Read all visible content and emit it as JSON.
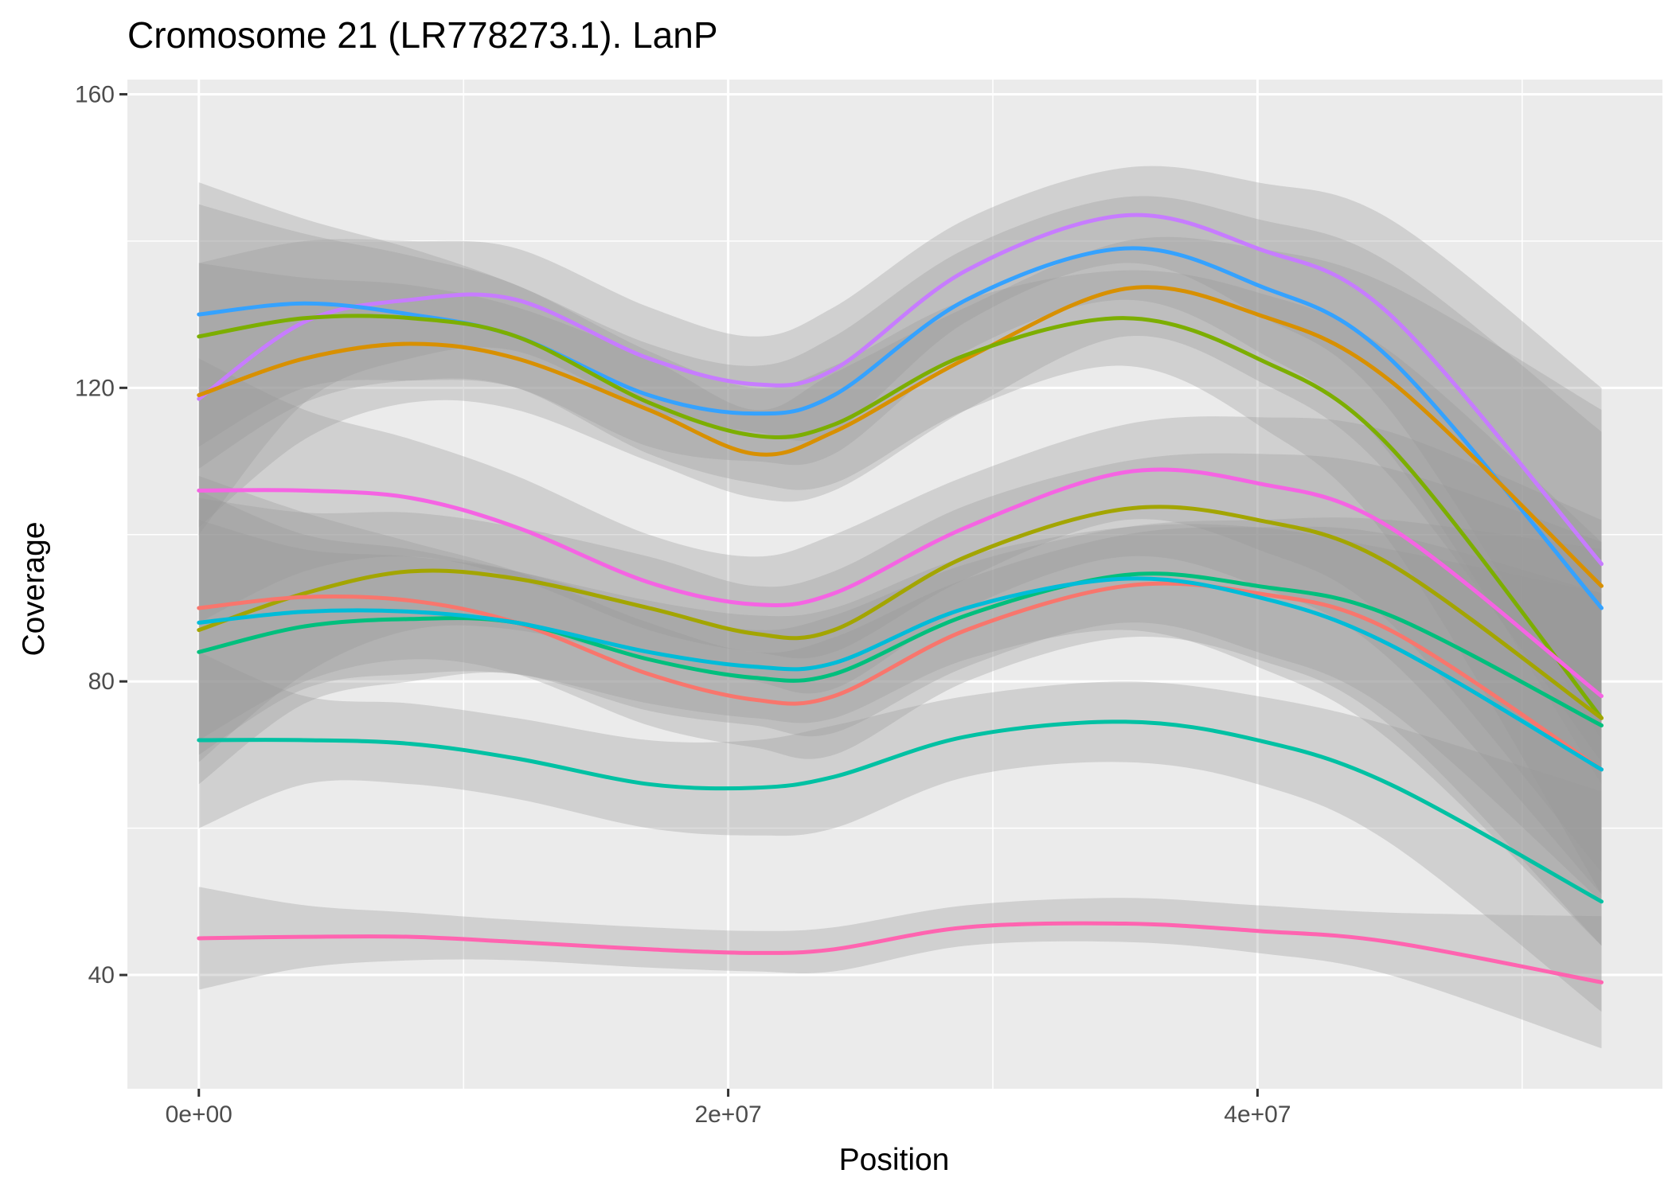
{
  "chart_data": {
    "type": "line",
    "title": "Cromosome 21 (LR778273.1). LanP",
    "xlabel": "Position",
    "ylabel": "Coverage",
    "xlim": [
      -2700000,
      55300000
    ],
    "ylim": [
      24.5,
      162
    ],
    "x_ticks": [
      {
        "value": 0,
        "label": "0e+00"
      },
      {
        "value": 20000000,
        "label": "2e+07"
      },
      {
        "value": 40000000,
        "label": "4e+07"
      }
    ],
    "x_minor": [
      10000000,
      30000000,
      50000000
    ],
    "y_ticks": [
      {
        "value": 40,
        "label": "40"
      },
      {
        "value": 80,
        "label": "80"
      },
      {
        "value": 120,
        "label": "120"
      },
      {
        "value": 160,
        "label": "160"
      }
    ],
    "y_minor": [
      60,
      100,
      140
    ],
    "grid": true,
    "legend": "none",
    "confidence_bands": true,
    "background": "#ebebeb",
    "band_color": "#999999",
    "x": [
      0,
      4000000,
      8000000,
      12000000,
      17000000,
      21000000,
      24000000,
      29000000,
      35000000,
      40000000,
      45000000,
      53000000
    ],
    "series": [
      {
        "color": "#c77cff",
        "values": [
          118.5,
          129,
          132,
          132,
          124,
          120.5,
          122.5,
          136,
          143.5,
          139,
          130,
          96
        ],
        "lower": [
          100,
          118,
          124,
          125,
          117,
          114,
          114,
          129,
          137,
          130,
          117,
          72
        ],
        "upper": [
          137,
          140,
          140,
          139,
          131,
          127,
          131,
          143,
          150,
          148,
          143,
          120
        ]
      },
      {
        "color": "#35a2ff",
        "values": [
          130,
          131.5,
          130,
          127,
          119,
          116.5,
          119,
          132,
          139,
          134,
          124,
          90
        ],
        "lower": [
          112,
          120,
          121,
          120,
          112,
          110,
          111,
          125,
          132,
          125,
          111,
          66
        ],
        "upper": [
          148,
          143,
          139,
          134,
          126,
          123,
          127,
          139,
          146,
          143,
          137,
          114
        ]
      },
      {
        "color": "#d89000",
        "values": [
          119,
          124,
          126,
          124,
          117,
          111,
          114,
          124,
          133.5,
          130,
          121,
          93
        ],
        "lower": [
          101,
          113,
          118,
          117,
          110,
          105,
          106,
          117,
          127,
          121,
          108,
          69
        ],
        "upper": [
          137,
          135,
          134,
          131,
          124,
          117,
          122,
          131,
          140,
          139,
          134,
          117
        ]
      },
      {
        "color": "#7cae00",
        "values": [
          127,
          129.5,
          129.5,
          127,
          118,
          113.5,
          115,
          124.5,
          129.5,
          124,
          112,
          75
        ],
        "lower": [
          109,
          118,
          121,
          120,
          111,
          107,
          107,
          117,
          123,
          115,
          99,
          51
        ],
        "upper": [
          145,
          141,
          138,
          134,
          125,
          120,
          123,
          132,
          136,
          133,
          125,
          99
        ]
      },
      {
        "color": "#f564e3",
        "values": [
          106,
          106,
          105,
          101,
          93.5,
          90.5,
          92,
          101,
          108.5,
          107,
          101,
          78
        ],
        "lower": [
          88,
          95,
          97,
          94,
          87,
          84,
          84,
          94,
          102,
          98,
          88,
          54
        ],
        "upper": [
          124,
          117,
          113,
          108,
          100,
          97,
          100,
          108,
          115,
          116,
          114,
          102
        ]
      },
      {
        "color": "#a3a500",
        "values": [
          87,
          92,
          95,
          94,
          90,
          86.5,
          87,
          97,
          103.5,
          102,
          96,
          75
        ],
        "lower": [
          69,
          81,
          87,
          87,
          83,
          80,
          79,
          90,
          97,
          93,
          83,
          51
        ],
        "upper": [
          105,
          103,
          103,
          101,
          97,
          93,
          95,
          104,
          110,
          111,
          109,
          99
        ]
      },
      {
        "color": "#f8766d",
        "values": [
          90,
          91.5,
          91,
          88,
          81,
          77.5,
          78,
          87,
          93,
          92,
          87,
          68
        ],
        "lower": [
          72,
          80,
          83,
          81,
          74,
          71,
          70,
          80,
          86,
          83,
          74,
          44
        ],
        "upper": [
          108,
          103,
          99,
          95,
          88,
          84,
          86,
          94,
          100,
          101,
          100,
          92
        ]
      },
      {
        "color": "#00bf7d",
        "values": [
          84,
          87.5,
          88.5,
          88,
          83,
          80.5,
          81,
          89,
          94.5,
          93,
          89,
          74
        ],
        "lower": [
          66,
          77,
          80,
          81,
          76,
          74,
          73,
          82,
          88,
          84,
          76,
          50
        ],
        "upper": [
          102,
          98,
          97,
          95,
          90,
          87,
          89,
          96,
          101,
          102,
          102,
          98
        ]
      },
      {
        "color": "#00bcd8",
        "values": [
          88,
          89.5,
          89.5,
          88,
          84,
          82,
          82.5,
          90,
          94,
          91.5,
          85,
          68
        ],
        "lower": [
          70,
          79,
          81,
          81,
          77,
          75,
          75,
          83,
          87,
          82,
          72,
          44
        ],
        "upper": [
          106,
          100,
          98,
          95,
          91,
          89,
          90,
          97,
          101,
          101,
          98,
          92
        ]
      },
      {
        "color": "#00c1a3",
        "values": [
          72,
          72,
          71.5,
          69.5,
          66,
          65.5,
          67,
          72.5,
          74.5,
          72,
          66,
          50
        ],
        "lower": [
          60,
          66,
          66,
          64,
          60,
          59,
          60,
          67,
          69,
          66,
          58,
          35
        ],
        "upper": [
          84,
          78,
          77,
          75,
          72,
          72,
          74,
          78,
          80,
          78,
          74,
          65
        ]
      },
      {
        "color": "#ff64b0",
        "values": [
          45,
          45.2,
          45.2,
          44.5,
          43.5,
          43,
          43.5,
          46.5,
          47,
          46,
          44.5,
          39
        ],
        "lower": [
          38,
          41,
          42,
          42,
          41,
          40.5,
          40.5,
          44,
          44.5,
          43,
          40,
          30
        ],
        "upper": [
          52,
          49.5,
          48.5,
          47.5,
          46.5,
          46,
          46.5,
          49.5,
          50.5,
          49.5,
          48.5,
          48
        ]
      }
    ]
  }
}
